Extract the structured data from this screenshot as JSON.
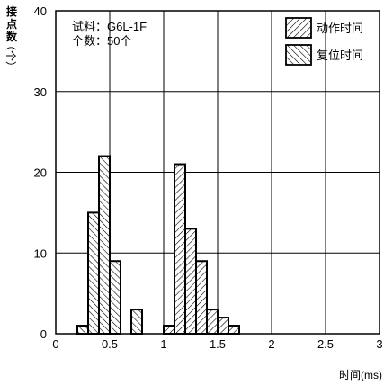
{
  "chart_data": {
    "type": "bar",
    "title": "",
    "annotation": [
      "试料：G6L-1F",
      "个数：50个"
    ],
    "ylabel": "接点数",
    "yunit": "（个）",
    "xlabel": "时间(ms)",
    "xlim": [
      0,
      3
    ],
    "ylim": [
      0,
      40
    ],
    "xticks": [
      "0",
      "0.5",
      "1",
      "1.5",
      "2",
      "2.5",
      "3"
    ],
    "yticks": [
      "0",
      "10",
      "20",
      "30",
      "40"
    ],
    "bin_width": 0.1,
    "grid": true,
    "legend_position": "top-right",
    "series": [
      {
        "name": "动作时间",
        "hatch": "forward",
        "bins": [
          {
            "x": 1.0,
            "value": 1
          },
          {
            "x": 1.1,
            "value": 21
          },
          {
            "x": 1.2,
            "value": 13
          },
          {
            "x": 1.3,
            "value": 9
          },
          {
            "x": 1.4,
            "value": 3
          },
          {
            "x": 1.5,
            "value": 2
          },
          {
            "x": 1.6,
            "value": 1
          }
        ]
      },
      {
        "name": "复位时间",
        "hatch": "backward",
        "bins": [
          {
            "x": 0.2,
            "value": 1
          },
          {
            "x": 0.3,
            "value": 15
          },
          {
            "x": 0.4,
            "value": 22
          },
          {
            "x": 0.5,
            "value": 9
          },
          {
            "x": 0.7,
            "value": 3
          }
        ]
      }
    ]
  }
}
